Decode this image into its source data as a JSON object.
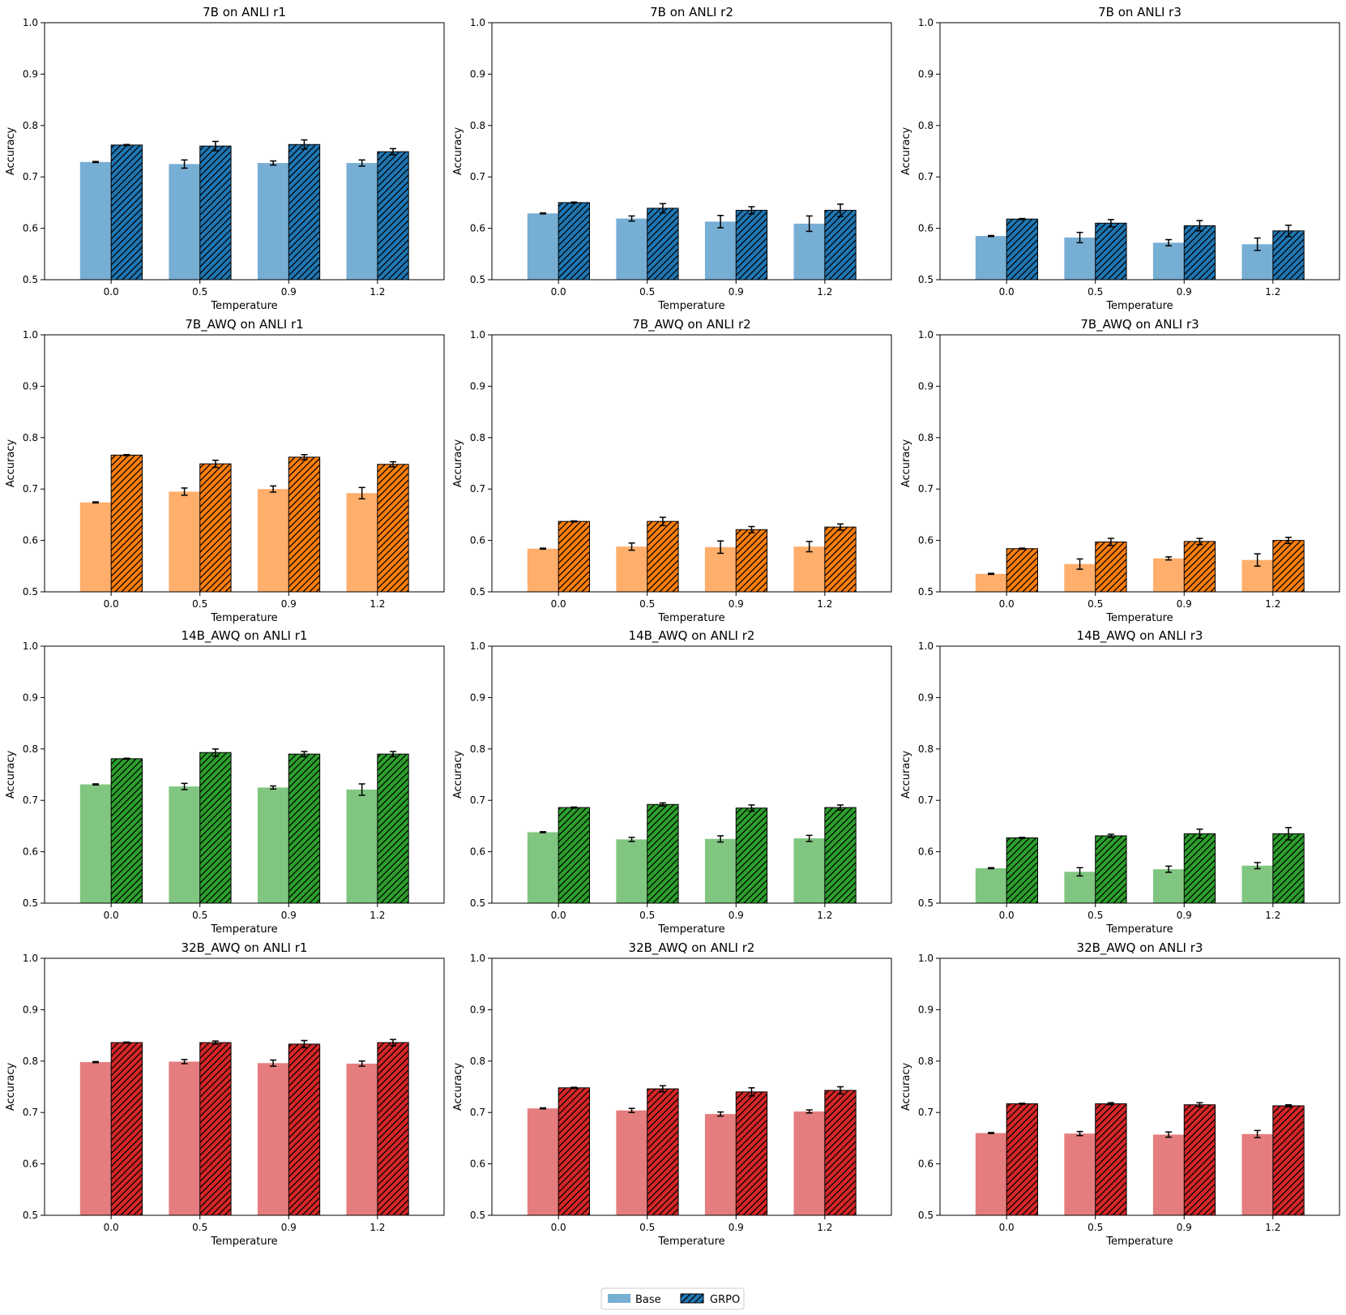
{
  "chart_data": {
    "type": "bar",
    "layout": "4x3 grid of grouped bar charts",
    "xlabel": "Temperature",
    "ylabel": "Accuracy",
    "ylim": [
      0.5,
      1.0
    ],
    "yticks": [
      "0.5",
      "0.6",
      "0.7",
      "0.8",
      "0.9",
      "1.0"
    ],
    "categories": [
      "0.0",
      "0.5",
      "0.9",
      "1.2"
    ],
    "legend": {
      "placement": "bottom-center",
      "entries": [
        {
          "name": "Base",
          "style": "solid-light"
        },
        {
          "name": "GRPO",
          "style": "hatched-dark"
        }
      ]
    },
    "panels": [
      {
        "title": "7B on ANLI r1",
        "color_light": "#77aed4",
        "color_dark": "#1f77b4",
        "series": [
          {
            "name": "Base",
            "values": [
              0.729,
              0.725,
              0.727,
              0.727
            ],
            "errors": [
              0.001,
              0.008,
              0.004,
              0.006
            ]
          },
          {
            "name": "GRPO",
            "values": [
              0.762,
              0.76,
              0.763,
              0.749
            ],
            "errors": [
              0.001,
              0.009,
              0.009,
              0.006
            ]
          }
        ]
      },
      {
        "title": "7B on ANLI r2",
        "color_light": "#77aed4",
        "color_dark": "#1f77b4",
        "series": [
          {
            "name": "Base",
            "values": [
              0.629,
              0.619,
              0.613,
              0.609
            ],
            "errors": [
              0.001,
              0.005,
              0.012,
              0.015
            ]
          },
          {
            "name": "GRPO",
            "values": [
              0.65,
              0.639,
              0.635,
              0.635
            ],
            "errors": [
              0.001,
              0.009,
              0.007,
              0.012
            ]
          }
        ]
      },
      {
        "title": "7B on ANLI r3",
        "color_light": "#77aed4",
        "color_dark": "#1f77b4",
        "series": [
          {
            "name": "Base",
            "values": [
              0.585,
              0.582,
              0.572,
              0.569
            ],
            "errors": [
              0.001,
              0.01,
              0.006,
              0.012
            ]
          },
          {
            "name": "GRPO",
            "values": [
              0.618,
              0.61,
              0.605,
              0.595
            ],
            "errors": [
              0.001,
              0.007,
              0.01,
              0.011
            ]
          }
        ]
      },
      {
        "title": "7B_AWQ on ANLI r1",
        "color_light": "#ffae6b",
        "color_dark": "#ff7f0e",
        "series": [
          {
            "name": "Base",
            "values": [
              0.674,
              0.695,
              0.7,
              0.692
            ],
            "errors": [
              0.001,
              0.007,
              0.006,
              0.011
            ]
          },
          {
            "name": "GRPO",
            "values": [
              0.766,
              0.749,
              0.762,
              0.748
            ],
            "errors": [
              0.001,
              0.007,
              0.005,
              0.005
            ]
          }
        ]
      },
      {
        "title": "7B_AWQ on ANLI r2",
        "color_light": "#ffae6b",
        "color_dark": "#ff7f0e",
        "series": [
          {
            "name": "Base",
            "values": [
              0.584,
              0.588,
              0.587,
              0.588
            ],
            "errors": [
              0.001,
              0.007,
              0.012,
              0.01
            ]
          },
          {
            "name": "GRPO",
            "values": [
              0.637,
              0.637,
              0.621,
              0.626
            ],
            "errors": [
              0.001,
              0.008,
              0.006,
              0.006
            ]
          }
        ]
      },
      {
        "title": "7B_AWQ on ANLI r3",
        "color_light": "#ffae6b",
        "color_dark": "#ff7f0e",
        "series": [
          {
            "name": "Base",
            "values": [
              0.535,
              0.554,
              0.565,
              0.562
            ],
            "errors": [
              0.001,
              0.01,
              0.003,
              0.012
            ]
          },
          {
            "name": "GRPO",
            "values": [
              0.584,
              0.597,
              0.598,
              0.6
            ],
            "errors": [
              0.001,
              0.007,
              0.006,
              0.006
            ]
          }
        ]
      },
      {
        "title": "14B_AWQ on ANLI r1",
        "color_light": "#80c680",
        "color_dark": "#2ca02c",
        "series": [
          {
            "name": "Base",
            "values": [
              0.731,
              0.727,
              0.725,
              0.721
            ],
            "errors": [
              0.001,
              0.006,
              0.003,
              0.011
            ]
          },
          {
            "name": "GRPO",
            "values": [
              0.781,
              0.793,
              0.79,
              0.79
            ],
            "errors": [
              0.001,
              0.007,
              0.005,
              0.005
            ]
          }
        ]
      },
      {
        "title": "14B_AWQ on ANLI r2",
        "color_light": "#80c680",
        "color_dark": "#2ca02c",
        "series": [
          {
            "name": "Base",
            "values": [
              0.638,
              0.624,
              0.625,
              0.626
            ],
            "errors": [
              0.001,
              0.004,
              0.006,
              0.006
            ]
          },
          {
            "name": "GRPO",
            "values": [
              0.686,
              0.692,
              0.685,
              0.686
            ],
            "errors": [
              0.001,
              0.003,
              0.006,
              0.005
            ]
          }
        ]
      },
      {
        "title": "14B_AWQ on ANLI r3",
        "color_light": "#80c680",
        "color_dark": "#2ca02c",
        "series": [
          {
            "name": "Base",
            "values": [
              0.568,
              0.561,
              0.566,
              0.573
            ],
            "errors": [
              0.001,
              0.008,
              0.006,
              0.006
            ]
          },
          {
            "name": "GRPO",
            "values": [
              0.627,
              0.631,
              0.635,
              0.635
            ],
            "errors": [
              0.001,
              0.003,
              0.009,
              0.012
            ]
          }
        ]
      },
      {
        "title": "32B_AWQ on ANLI r1",
        "color_light": "#e57d7e",
        "color_dark": "#d62728",
        "series": [
          {
            "name": "Base",
            "values": [
              0.798,
              0.799,
              0.796,
              0.795
            ],
            "errors": [
              0.001,
              0.004,
              0.006,
              0.005
            ]
          },
          {
            "name": "GRPO",
            "values": [
              0.836,
              0.836,
              0.833,
              0.836
            ],
            "errors": [
              0.001,
              0.003,
              0.007,
              0.006
            ]
          }
        ]
      },
      {
        "title": "32B_AWQ on ANLI r2",
        "color_light": "#e57d7e",
        "color_dark": "#d62728",
        "series": [
          {
            "name": "Base",
            "values": [
              0.708,
              0.704,
              0.697,
              0.702
            ],
            "errors": [
              0.001,
              0.004,
              0.004,
              0.003
            ]
          },
          {
            "name": "GRPO",
            "values": [
              0.748,
              0.746,
              0.74,
              0.743
            ],
            "errors": [
              0.001,
              0.006,
              0.008,
              0.007
            ]
          }
        ]
      },
      {
        "title": "32B_AWQ on ANLI r3",
        "color_light": "#e57d7e",
        "color_dark": "#d62728",
        "series": [
          {
            "name": "Base",
            "values": [
              0.66,
              0.659,
              0.657,
              0.658
            ],
            "errors": [
              0.001,
              0.004,
              0.005,
              0.007
            ]
          },
          {
            "name": "GRPO",
            "values": [
              0.717,
              0.717,
              0.715,
              0.713
            ],
            "errors": [
              0.001,
              0.002,
              0.004,
              0.002
            ]
          }
        ]
      }
    ]
  }
}
